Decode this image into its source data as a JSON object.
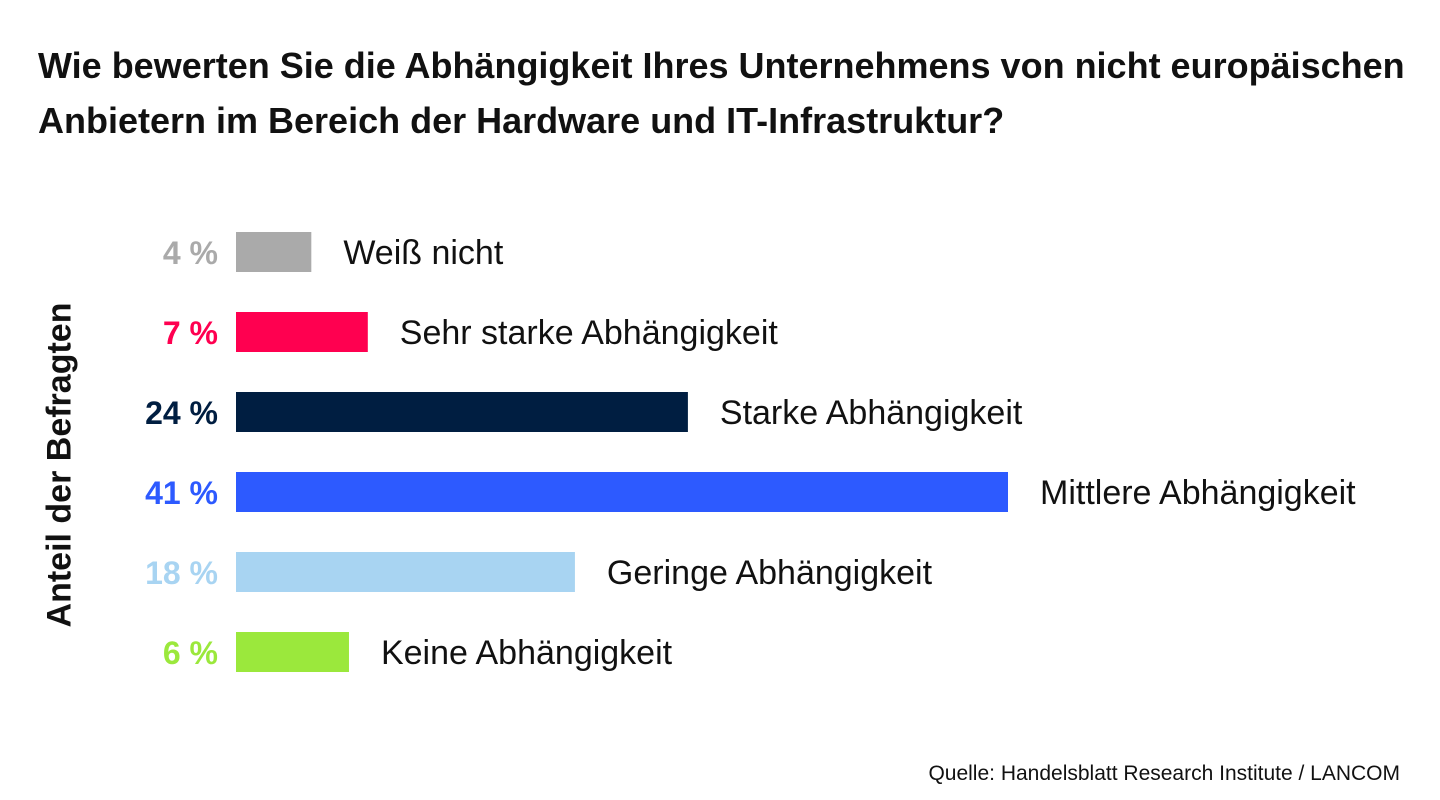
{
  "chart_data": {
    "type": "bar",
    "orientation": "horizontal",
    "title": "Wie bewerten Sie die Abhängigkeit Ihres Unternehmens von nicht europäischen Anbietern im Bereich der Hardware und IT-Infrastruktur?",
    "ylabel": "Anteil der Befragten",
    "xlabel": "",
    "categories": [
      "Weiß nicht",
      "Sehr starke Abhängigkeit",
      "Starke Abhängigkeit",
      "Mittlere Abhängigkeit",
      "Geringe Abhängigkeit",
      "Keine Abhängigkeit"
    ],
    "values": [
      4,
      7,
      24,
      41,
      18,
      6
    ],
    "value_labels": [
      "4 %",
      "7 %",
      "24 %",
      "41 %",
      "18 %",
      "6 %"
    ],
    "colors": [
      "#AAAAAA",
      "#FF0050",
      "#001E41",
      "#2D5AFF",
      "#A8D4F2",
      "#9BE83C"
    ],
    "xlim": [
      0,
      41
    ],
    "grid": false,
    "legend": "none"
  },
  "source": "Quelle: Handelsblatt Research Institute / LANCOM"
}
